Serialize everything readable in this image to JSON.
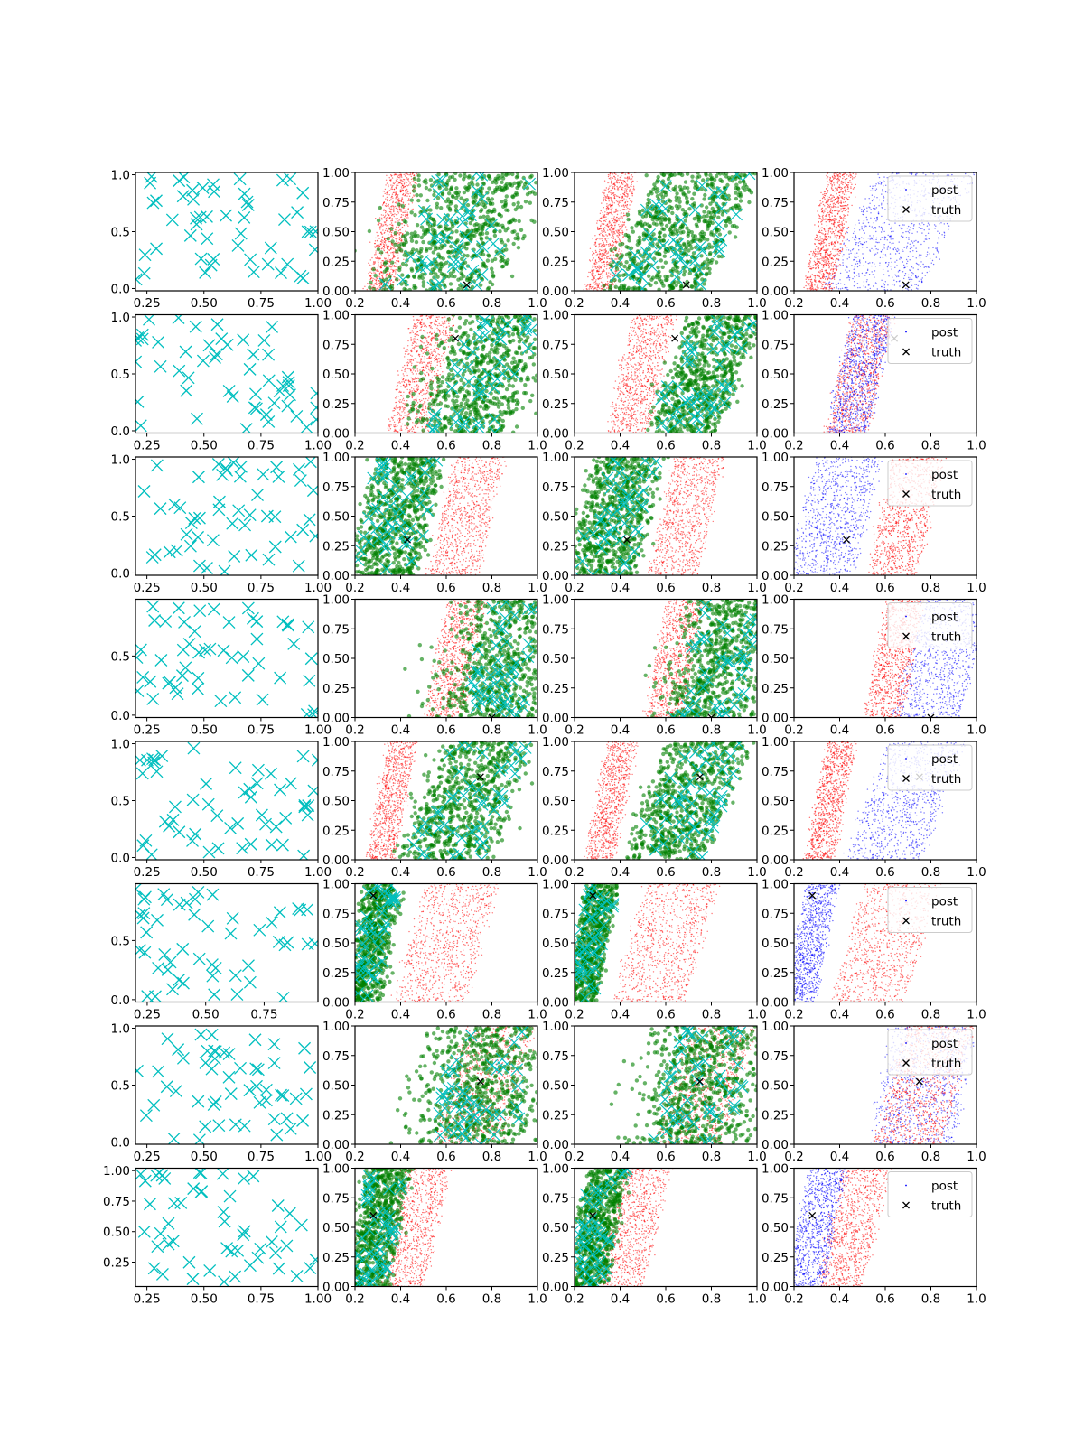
{
  "chart_data": {
    "type": "scatter",
    "grid_rows": 8,
    "grid_cols": 4,
    "legend_entries": [
      "post",
      "truth"
    ],
    "legend_position": "top-right",
    "colors": {
      "prior": "#ff0000",
      "reference": "#008000",
      "post": "#0000ff",
      "samples": "#00bfbf",
      "truth": "#000000"
    },
    "column_x_range": [
      0.2,
      1.0
    ],
    "column_y_range": [
      0.0,
      1.0
    ],
    "shared_x_ticks": [
      0.2,
      0.4,
      0.6,
      0.8,
      1.0
    ],
    "shared_y_ticks": [
      0.0,
      0.25,
      0.5,
      0.75,
      1.0
    ],
    "rows": [
      {
        "truth": [
          0.69,
          0.05
        ],
        "col0": {
          "xlim": [
            0.2,
            1.0
          ],
          "ylim": [
            -0.02,
            1.02
          ],
          "xticks": [
            0.25,
            0.5,
            0.75,
            1.0
          ],
          "yticks": [
            0.0,
            0.5,
            1.0
          ]
        },
        "band_a": {
          "x0": 0.3,
          "x1": 0.42,
          "slope": 0.1
        },
        "band_b": {
          "x0": 0.44,
          "x1": 0.88,
          "slope": 0.25
        },
        "panels": [
          {
            "bg": "red",
            "bg_band": "a",
            "fg": "green",
            "fg_band": "b",
            "fg_jitter": 0.18
          },
          {
            "bg": "red",
            "bg_band": "a",
            "fg": "green",
            "fg_band": "b",
            "fg_jitter": 0.05
          },
          {
            "bg": "blue",
            "bg_band": "b",
            "fg": "red",
            "fg_band": "a",
            "legend": true
          }
        ]
      },
      {
        "truth": [
          0.64,
          0.8
        ],
        "col0": {
          "xlim": [
            0.2,
            1.0
          ],
          "ylim": [
            -0.02,
            1.02
          ],
          "xticks": [
            0.25,
            0.5,
            0.75,
            1.0
          ],
          "yticks": [
            0.0,
            0.5,
            1.0
          ]
        },
        "band_a": {
          "x0": 0.4,
          "x1": 0.58,
          "slope": 0.12
        },
        "band_b": {
          "x0": 0.62,
          "x1": 0.92,
          "slope": 0.2
        },
        "panels": [
          {
            "bg": "red",
            "bg_band": "a",
            "fg": "green",
            "fg_band": "b",
            "fg_jitter": 0.18
          },
          {
            "bg": "red",
            "bg_band": "a",
            "fg": "green",
            "fg_band": "b",
            "fg_jitter": 0.05
          },
          {
            "bg": "red",
            "bg_band": "a",
            "fg": "blue",
            "fg_band": "a",
            "legend": true
          }
        ]
      },
      {
        "truth": [
          0.43,
          0.3
        ],
        "col0": {
          "xlim": [
            0.2,
            1.0
          ],
          "ylim": [
            -0.02,
            1.02
          ],
          "xticks": [
            0.25,
            0.5,
            0.75,
            1.0
          ],
          "yticks": [
            0.0,
            0.5,
            1.0
          ]
        },
        "band_a": {
          "x0": 0.58,
          "x1": 0.8,
          "slope": 0.12
        },
        "band_b": {
          "x0": 0.24,
          "x1": 0.52,
          "slope": 0.12
        },
        "panels": [
          {
            "bg": "red",
            "bg_band": "a",
            "fg": "green",
            "fg_band": "b",
            "fg_jitter": 0.05
          },
          {
            "bg": "red",
            "bg_band": "a",
            "fg": "green",
            "fg_band": "b",
            "fg_jitter": 0.05
          },
          {
            "bg": "blue",
            "bg_band": "b",
            "fg": "red",
            "fg_band": "a",
            "legend": true
          }
        ]
      },
      {
        "truth": [
          0.8,
          0.0
        ],
        "col0": {
          "xlim": [
            0.2,
            1.0
          ],
          "ylim": [
            -0.02,
            0.98
          ],
          "xticks": [
            0.25,
            0.5,
            0.75,
            1.0
          ],
          "yticks": [
            0.0,
            0.5
          ]
        },
        "band_a": {
          "x0": 0.56,
          "x1": 0.72,
          "slope": 0.1
        },
        "band_b": {
          "x0": 0.7,
          "x1": 1.0,
          "slope": 0.15
        },
        "panels": [
          {
            "bg": "red",
            "bg_band": "a",
            "fg": "green",
            "fg_band": "b",
            "fg_jitter": 0.2
          },
          {
            "bg": "red",
            "bg_band": "a",
            "fg": "green",
            "fg_band": "b",
            "fg_jitter": 0.15
          },
          {
            "bg": "blue",
            "bg_band": "b",
            "fg": "red",
            "fg_band": "a",
            "legend": true
          }
        ]
      },
      {
        "truth": [
          0.75,
          0.7
        ],
        "col0": {
          "xlim": [
            0.2,
            1.0
          ],
          "ylim": [
            -0.02,
            1.02
          ],
          "xticks": [
            0.25,
            0.5,
            0.75,
            1.0
          ],
          "yticks": [
            0.0,
            0.5,
            1.0
          ]
        },
        "band_a": {
          "x0": 0.3,
          "x1": 0.42,
          "slope": 0.1
        },
        "band_b": {
          "x0": 0.52,
          "x1": 0.86,
          "slope": 0.2
        },
        "panels": [
          {
            "bg": "red",
            "bg_band": "a",
            "fg": "green",
            "fg_band": "b",
            "fg_jitter": 0.1
          },
          {
            "bg": "red",
            "bg_band": "a",
            "fg": "green",
            "fg_band": "b",
            "fg_jitter": 0.05
          },
          {
            "bg": "blue",
            "bg_band": "b",
            "fg": "red",
            "fg_band": "a",
            "legend": true
          }
        ]
      },
      {
        "truth": [
          0.28,
          0.9
        ],
        "col0": {
          "xlim": [
            0.2,
            0.98
          ],
          "ylim": [
            -0.02,
            0.98
          ],
          "xticks": [
            0.25,
            0.5,
            0.75
          ],
          "yticks": [
            0.0,
            0.5
          ]
        },
        "band_a": {
          "x0": 0.44,
          "x1": 0.76,
          "slope": 0.15
        },
        "band_b": {
          "x0": 0.21,
          "x1": 0.34,
          "slope": 0.1
        },
        "panels": [
          {
            "bg": "red",
            "bg_band": "a",
            "fg": "green",
            "fg_band": "b",
            "fg_jitter": 0.05
          },
          {
            "bg": "red",
            "bg_band": "a",
            "fg": "green",
            "fg_band": "b",
            "fg_jitter": 0.02
          },
          {
            "bg": "red",
            "bg_band": "a",
            "fg": "blue",
            "fg_band": "b",
            "legend": true
          }
        ]
      },
      {
        "truth": [
          0.75,
          0.53
        ],
        "col0": {
          "xlim": [
            0.2,
            1.0
          ],
          "ylim": [
            -0.02,
            1.02
          ],
          "xticks": [
            0.25,
            0.5,
            0.75,
            1.0
          ],
          "yticks": [
            0.0,
            0.5,
            1.0
          ]
        },
        "band_a": {
          "x0": 0.62,
          "x1": 0.92,
          "slope": 0.15
        },
        "band_b": {
          "x0": 0.58,
          "x1": 0.95,
          "slope": 0.1
        },
        "panels": [
          {
            "bg": "red",
            "bg_band": "a",
            "fg": "green",
            "fg_band": "b",
            "fg_jitter": 0.2
          },
          {
            "bg": "red",
            "bg_band": "a",
            "fg": "green",
            "fg_band": "b",
            "fg_jitter": 0.18
          },
          {
            "bg": "blue",
            "bg_band": "b",
            "fg": "red",
            "fg_band": "a",
            "legend": true
          }
        ]
      },
      {
        "truth": [
          0.28,
          0.6
        ],
        "col0": {
          "xlim": [
            0.2,
            1.0
          ],
          "ylim": [
            0.05,
            1.02
          ],
          "xticks": [
            0.25,
            0.5,
            0.75,
            1.0
          ],
          "yticks": [
            0.25,
            0.5,
            0.75,
            1.0
          ]
        },
        "band_a": {
          "x0": 0.36,
          "x1": 0.56,
          "slope": 0.12
        },
        "band_b": {
          "x0": 0.22,
          "x1": 0.38,
          "slope": 0.1
        },
        "panels": [
          {
            "bg": "red",
            "bg_band": "a",
            "fg": "green",
            "fg_band": "b",
            "fg_jitter": 0.05
          },
          {
            "bg": "red",
            "bg_band": "a",
            "fg": "green",
            "fg_band": "b",
            "fg_jitter": 0.03
          },
          {
            "bg": "red",
            "bg_band": "a",
            "fg": "blue",
            "fg_band": "b",
            "legend": true
          }
        ]
      }
    ]
  }
}
